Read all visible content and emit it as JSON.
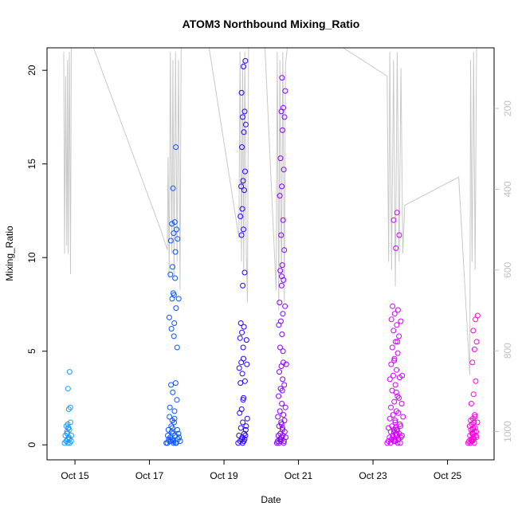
{
  "chart_data": {
    "type": "scatter",
    "title": "ATOM3 Northbound Mixing_Ratio",
    "xlabel": "Date",
    "ylabel": "Mixing_Ratio",
    "xlim_days": [
      14.25,
      26.25
    ],
    "ylim": [
      -0.8,
      21.2
    ],
    "x_ticks": [
      {
        "day": 15,
        "label": "Oct 15"
      },
      {
        "day": 17,
        "label": "Oct 17"
      },
      {
        "day": 19,
        "label": "Oct 19"
      },
      {
        "day": 21,
        "label": "Oct 21"
      },
      {
        "day": 23,
        "label": "Oct 23"
      },
      {
        "day": 25,
        "label": "Oct 25"
      }
    ],
    "y_ticks": [
      0,
      5,
      10,
      15,
      20
    ],
    "secondary_axis": {
      "label": "",
      "ticks": [
        200,
        400,
        600,
        800,
        1000
      ],
      "lim": [
        1070,
        50
      ],
      "color": "#c0c0c0"
    },
    "grid": false,
    "legend": "none",
    "marker": "open-circle",
    "color_gradient": [
      "#1e9bf0",
      "#0000ff",
      "#8a00ff",
      "#ff00dd"
    ],
    "flights": [
      {
        "day_start": 14.72,
        "day_end": 14.93,
        "color": "#1e9bf0",
        "values": [
          0.1,
          0.2,
          0.3,
          0.5,
          0.7,
          0.9,
          1.0,
          1.1,
          0.8,
          0.6,
          0.4,
          0.2,
          0.1,
          0.3,
          0.6,
          1.9,
          2.0,
          3.0,
          3.9,
          0.2,
          0.4,
          1.2,
          0.9,
          0.1,
          0.5
        ]
      },
      {
        "day_start": 17.45,
        "day_end": 17.85,
        "color": "#0a55ff",
        "values": [
          0.1,
          0.2,
          0.3,
          0.1,
          0.4,
          0.6,
          0.8,
          1.0,
          1.2,
          1.5,
          0.9,
          0.5,
          0.2,
          0.1,
          0.3,
          0.7,
          1.8,
          2.0,
          2.8,
          3.3,
          3.2,
          5.8,
          6.8,
          7.8,
          8.9,
          9.1,
          8.1,
          7.3,
          6.2,
          6.5,
          5.2,
          9.5,
          10.3,
          10.9,
          11.3,
          11.5,
          11.8,
          11.9,
          11.0,
          13.7,
          15.9,
          7.8,
          8.0,
          2.4,
          1.3,
          0.5,
          0.3,
          0.2,
          0.1,
          0.4,
          1.4,
          0.8,
          0.2,
          0.1,
          0.6
        ]
      },
      {
        "day_start": 19.38,
        "day_end": 19.65,
        "color": "#2a00ff",
        "values": [
          0.1,
          0.2,
          0.3,
          0.5,
          0.9,
          1.2,
          1.7,
          1.9,
          2.5,
          3.3,
          3.8,
          4.1,
          4.4,
          5.2,
          5.7,
          6.0,
          6.3,
          6.5,
          8.5,
          9.2,
          11.2,
          11.5,
          12.2,
          12.6,
          13.6,
          13.8,
          14.1,
          14.6,
          15.9,
          16.7,
          17.1,
          17.5,
          17.8,
          18.8,
          20.2,
          20.5,
          0.4,
          0.6,
          1.0,
          2.4,
          3.4,
          4.3,
          0.2,
          0.8,
          0.1,
          0.3,
          5.6,
          4.6,
          0.5,
          1.4
        ]
      },
      {
        "day_start": 20.42,
        "day_end": 20.7,
        "color": "#8a00ff",
        "values": [
          0.1,
          0.1,
          0.2,
          0.2,
          0.3,
          0.4,
          0.5,
          0.6,
          0.8,
          1.0,
          1.2,
          1.5,
          1.8,
          2.2,
          2.6,
          3.0,
          3.5,
          3.9,
          4.2,
          4.4,
          5.2,
          5.9,
          6.4,
          6.6,
          7.0,
          7.6,
          8.5,
          8.8,
          9.3,
          9.6,
          10.4,
          11.2,
          12.0,
          13.3,
          13.8,
          14.7,
          15.3,
          16.8,
          17.5,
          17.8,
          18.0,
          18.9,
          19.6,
          0.2,
          0.3,
          0.5,
          0.7,
          1.1,
          1.6,
          2.0,
          2.9,
          3.2,
          4.3,
          5.0,
          7.4,
          9.0,
          0.1,
          0.4,
          0.9,
          1.3
        ]
      },
      {
        "day_start": 23.38,
        "day_end": 23.85,
        "color": "#d000ff",
        "values": [
          0.1,
          0.1,
          0.2,
          0.2,
          0.3,
          0.3,
          0.4,
          0.5,
          0.6,
          0.7,
          0.8,
          0.9,
          1.0,
          1.2,
          1.4,
          1.6,
          1.8,
          2.0,
          2.3,
          2.6,
          2.9,
          3.2,
          3.5,
          3.7,
          4.0,
          4.3,
          4.6,
          4.9,
          5.2,
          5.5,
          5.8,
          6.1,
          6.4,
          6.7,
          7.0,
          7.2,
          7.4,
          10.5,
          11.2,
          12.0,
          12.4,
          0.1,
          0.2,
          0.3,
          0.4,
          0.5,
          0.6,
          0.7,
          0.8,
          1.0,
          1.3,
          1.7,
          2.2,
          2.8,
          3.6,
          4.5,
          5.5,
          6.6,
          0.2,
          0.3,
          0.5,
          0.8,
          1.1,
          1.5,
          0.1,
          0.4,
          0.9,
          2.5,
          3.7,
          0.6
        ]
      },
      {
        "day_start": 25.55,
        "day_end": 25.85,
        "color": "#ff00dd",
        "values": [
          0.1,
          0.1,
          0.2,
          0.2,
          0.3,
          0.4,
          0.5,
          0.6,
          0.7,
          0.8,
          0.9,
          1.0,
          1.1,
          1.2,
          1.3,
          1.4,
          1.5,
          0.2,
          0.3,
          0.5,
          0.8,
          1.6,
          2.2,
          2.7,
          3.4,
          4.4,
          5.1,
          5.5,
          6.1,
          6.7,
          6.9,
          0.1,
          0.4,
          0.6,
          0.9,
          1.2,
          0.3,
          0.7
        ]
      }
    ],
    "pressure_trace": {
      "color": "#c8c8c8",
      "points": [
        [
          14.7,
          60
        ],
        [
          14.72,
          560
        ],
        [
          14.75,
          120
        ],
        [
          14.78,
          540
        ],
        [
          14.8,
          80
        ],
        [
          14.82,
          560
        ],
        [
          14.85,
          60
        ],
        [
          14.88,
          610
        ],
        [
          14.9,
          50
        ],
        [
          15.5,
          50
        ],
        [
          17.3,
          500
        ],
        [
          17.48,
          550
        ],
        [
          17.5,
          320
        ],
        [
          17.53,
          620
        ],
        [
          17.56,
          60
        ],
        [
          17.6,
          560
        ],
        [
          17.63,
          80
        ],
        [
          17.66,
          620
        ],
        [
          17.7,
          60
        ],
        [
          17.74,
          580
        ],
        [
          17.78,
          80
        ],
        [
          17.82,
          650
        ],
        [
          17.85,
          50
        ],
        [
          18.6,
          50
        ],
        [
          19.4,
          520
        ],
        [
          19.43,
          60
        ],
        [
          19.47,
          580
        ],
        [
          19.5,
          80
        ],
        [
          19.53,
          600
        ],
        [
          19.56,
          60
        ],
        [
          19.6,
          560
        ],
        [
          19.63,
          680
        ],
        [
          19.66,
          50
        ],
        [
          20.1,
          50
        ],
        [
          20.4,
          650
        ],
        [
          20.43,
          60
        ],
        [
          20.47,
          700
        ],
        [
          20.5,
          80
        ],
        [
          20.54,
          640
        ],
        [
          20.58,
          60
        ],
        [
          20.62,
          680
        ],
        [
          20.65,
          90
        ],
        [
          20.7,
          50
        ],
        [
          22.2,
          50
        ],
        [
          23.38,
          120
        ],
        [
          23.42,
          580
        ],
        [
          23.45,
          60
        ],
        [
          23.5,
          600
        ],
        [
          23.55,
          80
        ],
        [
          23.6,
          640
        ],
        [
          23.65,
          60
        ],
        [
          23.7,
          580
        ],
        [
          23.75,
          100
        ],
        [
          23.8,
          560
        ],
        [
          23.85,
          440
        ],
        [
          25.3,
          370
        ],
        [
          25.6,
          860
        ],
        [
          25.62,
          80
        ],
        [
          25.66,
          580
        ],
        [
          25.7,
          60
        ],
        [
          25.74,
          600
        ],
        [
          25.78,
          50
        ]
      ]
    }
  }
}
